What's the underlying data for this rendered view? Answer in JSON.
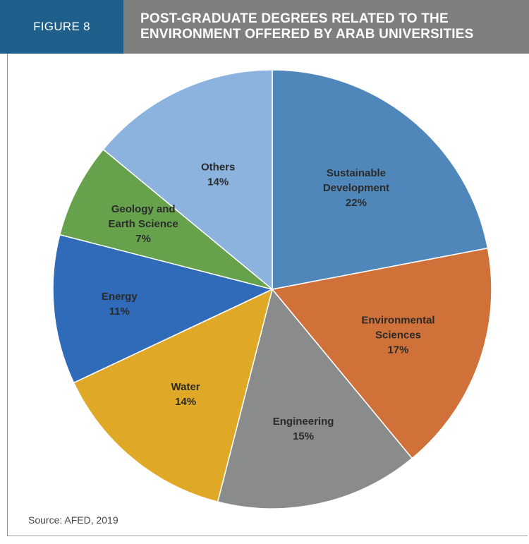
{
  "header": {
    "figure_label": "FIGURE 8",
    "title_line1": "POST-GRADUATE DEGREES RELATED TO THE",
    "title_line2": "ENVIRONMENT OFFERED BY ARAB UNIVERSITIES"
  },
  "source": "Source: AFED, 2019",
  "colors": {
    "header_blue": "#1f5f8b",
    "header_gray": "#7f7f7f"
  },
  "chart_data": {
    "type": "pie",
    "title": "POST-GRADUATE DEGREES RELATED TO THE ENVIRONMENT OFFERED BY ARAB UNIVERSITIES",
    "slices": [
      {
        "label_lines": [
          "Sustainable",
          "Development"
        ],
        "value": 22,
        "value_label": "22%",
        "color": "#4f87bb"
      },
      {
        "label_lines": [
          "Environmental",
          "Sciences"
        ],
        "value": 17,
        "value_label": "17%",
        "color": "#d1713a"
      },
      {
        "label_lines": [
          "Engineering"
        ],
        "value": 15,
        "value_label": "15%",
        "color": "#8a8c8c"
      },
      {
        "label_lines": [
          "Water"
        ],
        "value": 14,
        "value_label": "14%",
        "color": "#e0a827"
      },
      {
        "label_lines": [
          "Energy"
        ],
        "value": 11,
        "value_label": "11%",
        "color": "#2f6bb8"
      },
      {
        "label_lines": [
          "Geology and",
          "Earth Science"
        ],
        "value": 7,
        "value_label": "7%",
        "color": "#66a24c"
      },
      {
        "label_lines": [
          "Others"
        ],
        "value": 14,
        "value_label": "14%",
        "color": "#8cb3de"
      }
    ],
    "legend": "none",
    "data_labels": "inside"
  }
}
